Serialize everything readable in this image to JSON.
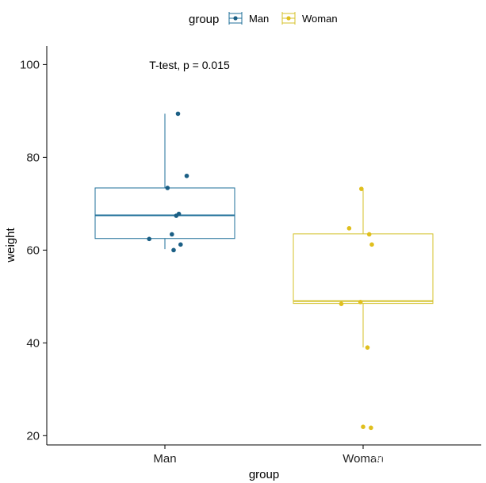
{
  "chart_data": {
    "type": "boxplot",
    "xlabel": "group",
    "ylabel": "weight",
    "ylim": [
      18,
      104
    ],
    "yticks": [
      20,
      40,
      60,
      80,
      100
    ],
    "categories": [
      "Man",
      "Woman"
    ],
    "legend": {
      "title": "group",
      "placement": "top",
      "entries": [
        {
          "label": "Man",
          "color": "#1f6f99"
        },
        {
          "label": "Woman",
          "color": "#d4c22a"
        }
      ]
    },
    "annotation": "T-test, p = 0.015",
    "grid": false,
    "series": [
      {
        "name": "Man",
        "color": "#1f6f99",
        "point_color": "#1b5f85",
        "box": {
          "whisker_low": 60.2,
          "q1": 62.5,
          "median": 67.5,
          "q3": 73.4,
          "whisker_high": 89.4
        },
        "points": [
          {
            "x_offset": -0.18,
            "y": 62.4
          },
          {
            "x_offset": 0.03,
            "y": 73.4
          },
          {
            "x_offset": 0.15,
            "y": 89.4
          },
          {
            "x_offset": 0.16,
            "y": 67.8
          },
          {
            "x_offset": 0.08,
            "y": 63.4
          },
          {
            "x_offset": 0.18,
            "y": 61.2
          },
          {
            "x_offset": 0.1,
            "y": 60.0
          },
          {
            "x_offset": 0.25,
            "y": 76.0
          },
          {
            "x_offset": 0.13,
            "y": 67.4
          }
        ]
      },
      {
        "name": "Woman",
        "color": "#d4c22a",
        "point_color": "#e0bf1e",
        "box": {
          "whisker_low": 39.0,
          "q1": 48.5,
          "median": 49.0,
          "q3": 63.5,
          "whisker_high": 73.4
        },
        "points": [
          {
            "x_offset": -0.25,
            "y": 48.4
          },
          {
            "x_offset": -0.16,
            "y": 64.7
          },
          {
            "x_offset": -0.03,
            "y": 48.8
          },
          {
            "x_offset": -0.02,
            "y": 73.2
          },
          {
            "x_offset": 0.07,
            "y": 63.4
          },
          {
            "x_offset": 0.1,
            "y": 61.2
          },
          {
            "x_offset": 0.05,
            "y": 39.0
          },
          {
            "x_offset": 0.0,
            "y": 21.9
          },
          {
            "x_offset": 0.09,
            "y": 21.7
          }
        ]
      }
    ]
  },
  "watermark": "知乎 @组学大讲堂"
}
